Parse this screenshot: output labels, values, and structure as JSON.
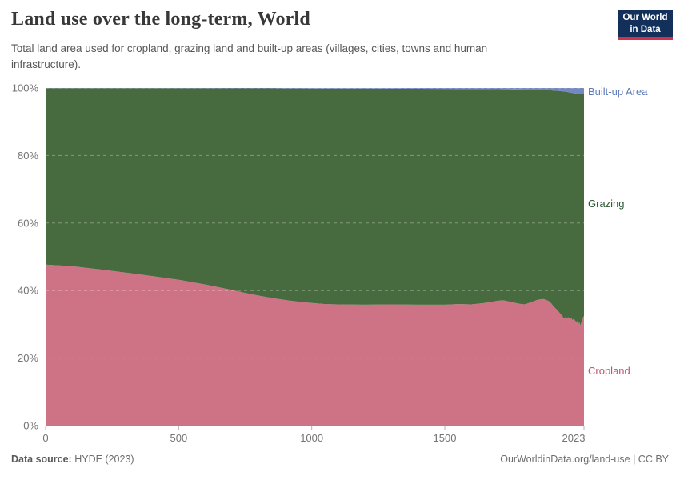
{
  "header": {
    "title": "Land use over the long-term, World",
    "subtitle": "Total land area used for cropland, grazing land and built-up areas (villages, cities, towns and human infrastructure)."
  },
  "logo": {
    "line1": "Our World",
    "line2": "in Data",
    "bg_color": "#12305a",
    "accent_color": "#d0314b"
  },
  "footer": {
    "data_source_label": "Data source:",
    "data_source_value": "HYDE (2023)",
    "link": "OurWorldinData.org/land-use",
    "separator": "|",
    "license": "CC BY"
  },
  "chart_data": {
    "type": "area",
    "stacked": true,
    "normalized_percent": true,
    "title": "Land use over the long-term, World",
    "xlabel": "",
    "ylabel": "",
    "x_domain": [
      0,
      2023
    ],
    "y_domain": [
      0,
      100
    ],
    "x_ticks": [
      0,
      500,
      1000,
      1500,
      2023
    ],
    "y_ticks": [
      0,
      20,
      40,
      60,
      80,
      100
    ],
    "y_tick_suffix": "%",
    "grid": "dashed-horizontal",
    "legend_position": "right-of-plot",
    "axis_text_color": "#737373",
    "axis_line_color": "#b3b3b3",
    "gridline_color": "rgba(255,255,255,0.32)",
    "x": [
      0,
      100,
      200,
      300,
      400,
      500,
      600,
      700,
      750,
      800,
      850,
      900,
      950,
      1000,
      1050,
      1100,
      1200,
      1300,
      1400,
      1500,
      1550,
      1600,
      1650,
      1700,
      1720,
      1750,
      1780,
      1800,
      1820,
      1850,
      1870,
      1890,
      1900,
      1910,
      1920,
      1930,
      1940,
      1945,
      1950,
      1955,
      1960,
      1965,
      1970,
      1975,
      1980,
      1985,
      1990,
      1995,
      2000,
      2003,
      2006,
      2009,
      2012,
      2015,
      2018,
      2021,
      2023
    ],
    "series": [
      {
        "name": "Cropland",
        "color": "#ce7386",
        "text_color": "#c2516b",
        "values": [
          47.7,
          47.2,
          46.3,
          45.3,
          44.3,
          43.2,
          41.8,
          40.2,
          39.3,
          38.5,
          37.8,
          37.2,
          36.7,
          36.3,
          36.0,
          35.9,
          35.8,
          35.9,
          35.8,
          35.8,
          36.0,
          35.9,
          36.3,
          37.0,
          37.1,
          36.6,
          36.1,
          35.9,
          36.4,
          37.3,
          37.5,
          36.9,
          36.2,
          35.2,
          34.4,
          33.5,
          32.6,
          32.0,
          31.7,
          32.3,
          31.6,
          32.1,
          31.4,
          31.9,
          31.2,
          31.7,
          31.0,
          30.7,
          31.1,
          29.9,
          30.8,
          29.7,
          30.2,
          31.1,
          31.7,
          32.3,
          32.5
        ]
      },
      {
        "name": "Grazing",
        "color": "#476b3e",
        "text_color": "#2e5a35",
        "values": [
          52.25,
          52.74,
          53.64,
          54.63,
          55.62,
          56.71,
          58.1,
          59.69,
          60.58,
          61.38,
          62.07,
          62.66,
          63.15,
          63.54,
          63.83,
          63.92,
          64.0,
          63.88,
          63.96,
          63.93,
          63.71,
          63.79,
          63.37,
          62.64,
          62.52,
          62.99,
          63.45,
          63.62,
          63.08,
          62.13,
          61.88,
          62.42,
          63.08,
          64.02,
          64.76,
          65.59,
          66.42,
          66.98,
          67.23,
          66.58,
          67.22,
          66.65,
          67.28,
          66.7,
          67.33,
          66.76,
          67.4,
          67.64,
          67.19,
          68.36,
          67.43,
          68.5,
          67.98,
          67.06,
          66.44,
          65.81,
          65.6
        ]
      },
      {
        "name": "Built-up Area",
        "color": "#7489c4",
        "text_color": "#5b79b8",
        "values": [
          0.05,
          0.06,
          0.06,
          0.07,
          0.08,
          0.09,
          0.1,
          0.11,
          0.12,
          0.12,
          0.13,
          0.14,
          0.15,
          0.16,
          0.17,
          0.18,
          0.2,
          0.22,
          0.24,
          0.27,
          0.29,
          0.31,
          0.33,
          0.36,
          0.38,
          0.41,
          0.45,
          0.48,
          0.52,
          0.57,
          0.62,
          0.68,
          0.72,
          0.78,
          0.84,
          0.91,
          0.98,
          1.02,
          1.07,
          1.12,
          1.18,
          1.25,
          1.32,
          1.4,
          1.47,
          1.54,
          1.6,
          1.66,
          1.71,
          1.74,
          1.77,
          1.8,
          1.82,
          1.84,
          1.86,
          1.89,
          1.9
        ]
      }
    ]
  }
}
